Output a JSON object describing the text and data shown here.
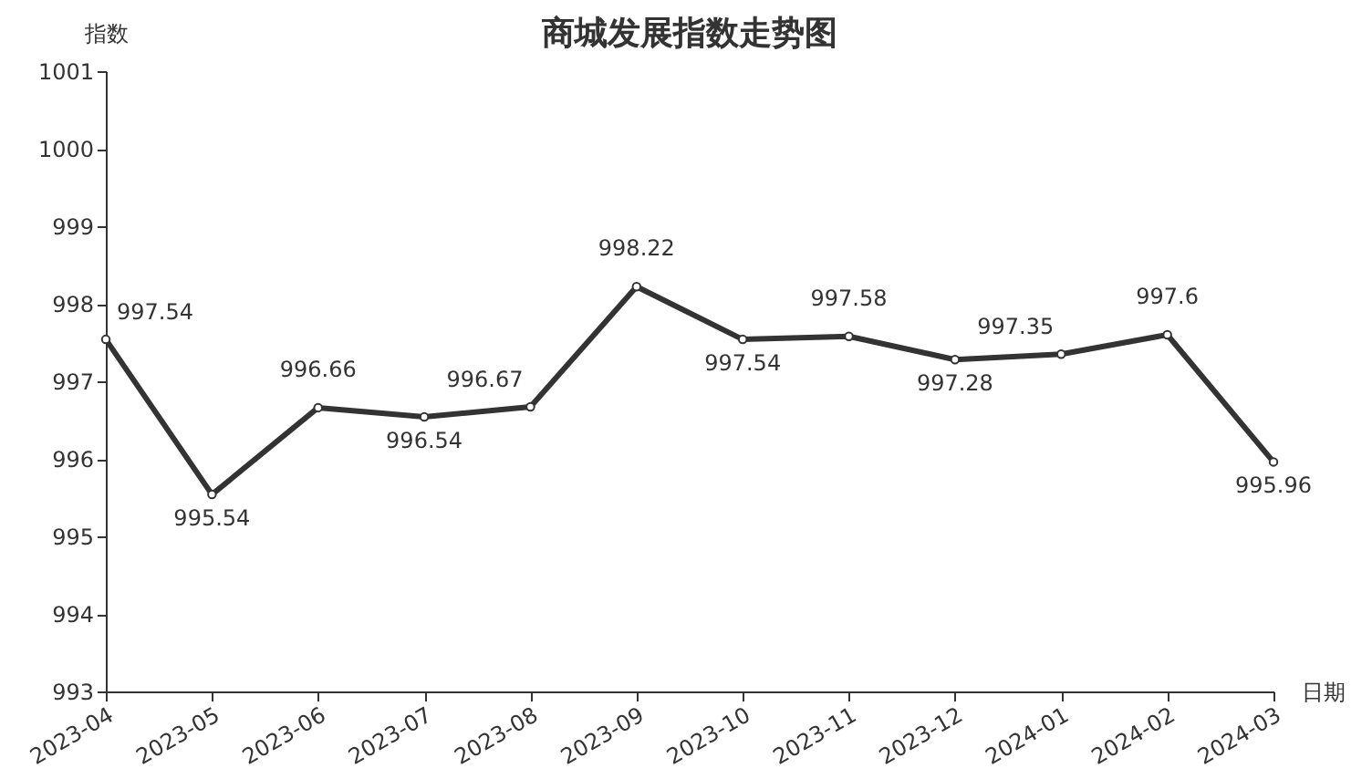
{
  "chart_data": {
    "type": "line",
    "title": "商城发展指数走势图",
    "xlabel": "日期",
    "ylabel": "指数",
    "categories": [
      "2023-04",
      "2023-05",
      "2023-06",
      "2023-07",
      "2023-08",
      "2023-09",
      "2023-10",
      "2023-11",
      "2023-12",
      "2024-01",
      "2024-02",
      "2024-03"
    ],
    "series": [
      {
        "color": "#333333",
        "values": [
          997.54,
          995.54,
          996.66,
          996.54,
          996.67,
          998.22,
          997.54,
          997.58,
          997.28,
          997.35,
          997.6,
          995.96
        ]
      }
    ],
    "ylim": [
      993,
      1001
    ],
    "yticks": [
      993,
      994,
      995,
      996,
      997,
      998,
      999,
      1000,
      1001
    ],
    "grid": false,
    "legend": false,
    "marker": "circle",
    "line_style": "solid",
    "data_labels": true
  }
}
